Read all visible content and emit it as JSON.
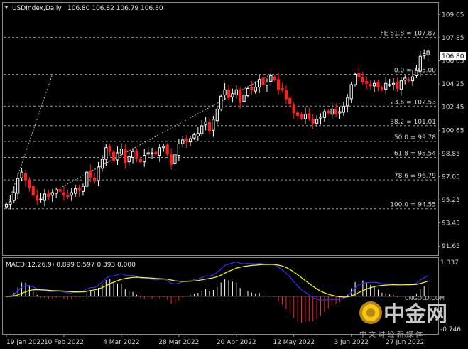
{
  "header": {
    "symbol": "USDIndex,Daily",
    "ohlc": "106.80 106.82 106.79 106.80",
    "collapse_arrow": "triangle-down-icon"
  },
  "chart_data": [
    {
      "type": "candlestick",
      "title": "USDIndex,Daily",
      "ylim": [
        91.0,
        110.5
      ],
      "y_ticks": [
        "109.65",
        "107.85",
        "106.05",
        "104.25",
        "102.45",
        "100.65",
        "98.85",
        "97.05",
        "95.25",
        "93.45",
        "91.65"
      ],
      "last_price": "106.80",
      "x_ticks": [
        "19 Jan 2022",
        "10 Feb 2022",
        "4 Mar 2022",
        "28 Mar 2022",
        "20 Apr 2022",
        "12 May 2022",
        "3 Jun 2022",
        "27 Jun 2022"
      ],
      "bull_color": "#ffffff",
      "bear_color": "#ff2020",
      "closes": [
        94.9,
        95.1,
        95.8,
        96.9,
        97.4,
        96.8,
        96.2,
        95.6,
        95.2,
        95.3,
        95.7,
        95.5,
        95.8,
        96.0,
        95.9,
        95.6,
        95.5,
        95.8,
        96.1,
        96.0,
        96.3,
        97.4,
        97.0,
        96.7,
        97.8,
        98.4,
        99.3,
        99.0,
        98.3,
        98.9,
        99.2,
        98.1,
        98.6,
        99.0,
        98.5,
        98.2,
        98.7,
        98.9,
        98.9,
        98.8,
        99.3,
        99.4,
        98.8,
        98.0,
        98.8,
        99.6,
        99.9,
        99.8,
        100.0,
        100.3,
        100.4,
        101.0,
        101.3,
        100.6,
        101.5,
        102.3,
        103.3,
        103.8,
        103.2,
        103.5,
        103.8,
        102.8,
        103.4,
        103.9,
        103.8,
        104.0,
        104.6,
        104.2,
        104.4,
        104.9,
        104.6,
        103.8,
        103.8,
        103.1,
        102.7,
        102.0,
        101.8,
        101.6,
        101.9,
        101.6,
        101.2,
        101.5,
        101.7,
        102.1,
        102.0,
        102.3,
        101.9,
        102.1,
        102.5,
        103.2,
        104.2,
        105.0,
        104.8,
        104.4,
        104.3,
        104.1,
        104.3,
        104.0,
        103.8,
        104.3,
        104.2,
        104.3,
        103.9,
        104.5,
        104.7,
        104.5,
        104.8,
        105.3,
        106.4,
        106.6,
        106.8
      ]
    },
    {
      "type": "macd",
      "title": "MACD(12,26,9) 0.899 0.597 0.393 0.000",
      "params": "MACD(12,26,9)",
      "values": [
        "0.899",
        "0.597",
        "0.393",
        "0.000"
      ],
      "ylim": [
        -0.746,
        1.337
      ],
      "y_ticks": [
        "1.337",
        "-0.746"
      ],
      "macd_line_color": "#2f2fff",
      "signal_line_color": "#ffff00"
    }
  ],
  "fibonacci": {
    "levels": [
      {
        "label": "FE 61.8 = 107.87",
        "price": 107.87
      },
      {
        "label": "0.0 = 105.00",
        "price": 105.0
      },
      {
        "label": "23.6 = 102.53",
        "price": 102.53
      },
      {
        "label": "38.2 = 101.01",
        "price": 101.01
      },
      {
        "label": "50.0 = 99.78",
        "price": 99.78
      },
      {
        "label": "61.8 = 98.54",
        "price": 98.54
      },
      {
        "label": "78.6 = 96.79",
        "price": 96.79
      },
      {
        "label": "100.0 = 94.55",
        "price": 94.55
      }
    ]
  },
  "watermark": {
    "site": "CNGOLD.COM",
    "brand": "中金网",
    "slogan": "中 文 财 经 新 媒 体",
    "logo_icon": "gold-coin-logo-icon"
  }
}
